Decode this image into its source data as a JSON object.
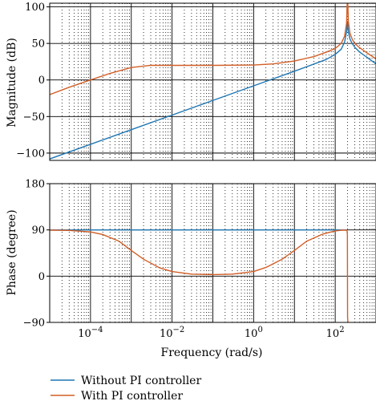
{
  "chart_data": [
    {
      "type": "line",
      "panel": "magnitude",
      "ylabel": "Magnitude (dB)",
      "xlabel": "",
      "x_scale": "log",
      "xlim": [
        1e-05,
        1000
      ],
      "ylim": [
        -110,
        105
      ],
      "yticks": [
        -100,
        -50,
        0,
        50,
        100
      ],
      "grid": true,
      "series": [
        {
          "name": "Without PI controller",
          "color": "#1f77b4",
          "x": [
            1e-05,
            0.0001,
            0.001,
            0.01,
            0.1,
            1,
            10,
            60,
            100,
            140,
            170,
            190,
            200,
            210,
            230,
            260,
            300,
            400,
            600,
            1000
          ],
          "y": [
            -108,
            -88,
            -68,
            -48,
            -28,
            -8,
            12,
            28,
            35,
            42,
            52,
            66,
            80,
            66,
            56,
            50,
            45,
            38,
            31,
            22
          ]
        },
        {
          "name": "With PI controller",
          "color": "#d35f27",
          "x": [
            1e-05,
            3e-05,
            0.0001,
            0.0003,
            0.001,
            0.003,
            0.01,
            0.1,
            1,
            3,
            10,
            30,
            60,
            100,
            140,
            170,
            190,
            195,
            200,
            205,
            210,
            230,
            260,
            300,
            400,
            600,
            1000
          ],
          "y": [
            -20,
            -10,
            0,
            9,
            17,
            20,
            20,
            20,
            20.5,
            22,
            26,
            32,
            38,
            43,
            50,
            60,
            78,
            100,
            110,
            100,
            80,
            64,
            56,
            50,
            44,
            37,
            29
          ]
        }
      ]
    },
    {
      "type": "line",
      "panel": "phase",
      "ylabel": "Phase (degree)",
      "xlabel": "Frequency (rad/s)",
      "x_scale": "log",
      "xlim": [
        1e-05,
        1000
      ],
      "ylim": [
        -90,
        180
      ],
      "yticks": [
        -90,
        0,
        90,
        180
      ],
      "xticks": [
        0.0001,
        0.01,
        1,
        100
      ],
      "xtick_labels": [
        "10−4",
        "10−2",
        "100",
        "102"
      ],
      "grid": true,
      "series": [
        {
          "name": "Without PI controller",
          "color": "#1f77b4",
          "x": [
            1e-05,
            0.1,
            1,
            10,
            100,
            180,
            195,
            200
          ],
          "y": [
            90,
            90,
            90,
            90,
            90,
            90,
            90,
            90
          ]
        },
        {
          "name": "With PI controller",
          "color": "#d35f27",
          "x": [
            1e-05,
            3e-05,
            0.0001,
            0.0002,
            0.0005,
            0.001,
            0.002,
            0.005,
            0.01,
            0.03,
            0.1,
            0.3,
            1,
            2,
            5,
            10,
            20,
            50,
            100,
            150,
            190,
            195,
            199,
            200,
            201,
            205
          ],
          "y": [
            89.5,
            89,
            86,
            81,
            68,
            50,
            33,
            16,
            9,
            4,
            3,
            4,
            9,
            17,
            33,
            50,
            68,
            82,
            88,
            89.5,
            89.5,
            89,
            80,
            0,
            -80,
            -90
          ]
        }
      ]
    }
  ],
  "legend": {
    "placement": "bottom-center",
    "entries": [
      {
        "label": "Without PI controller",
        "color": "#1f77b4"
      },
      {
        "label": "With PI controller",
        "color": "#d35f27"
      }
    ]
  }
}
